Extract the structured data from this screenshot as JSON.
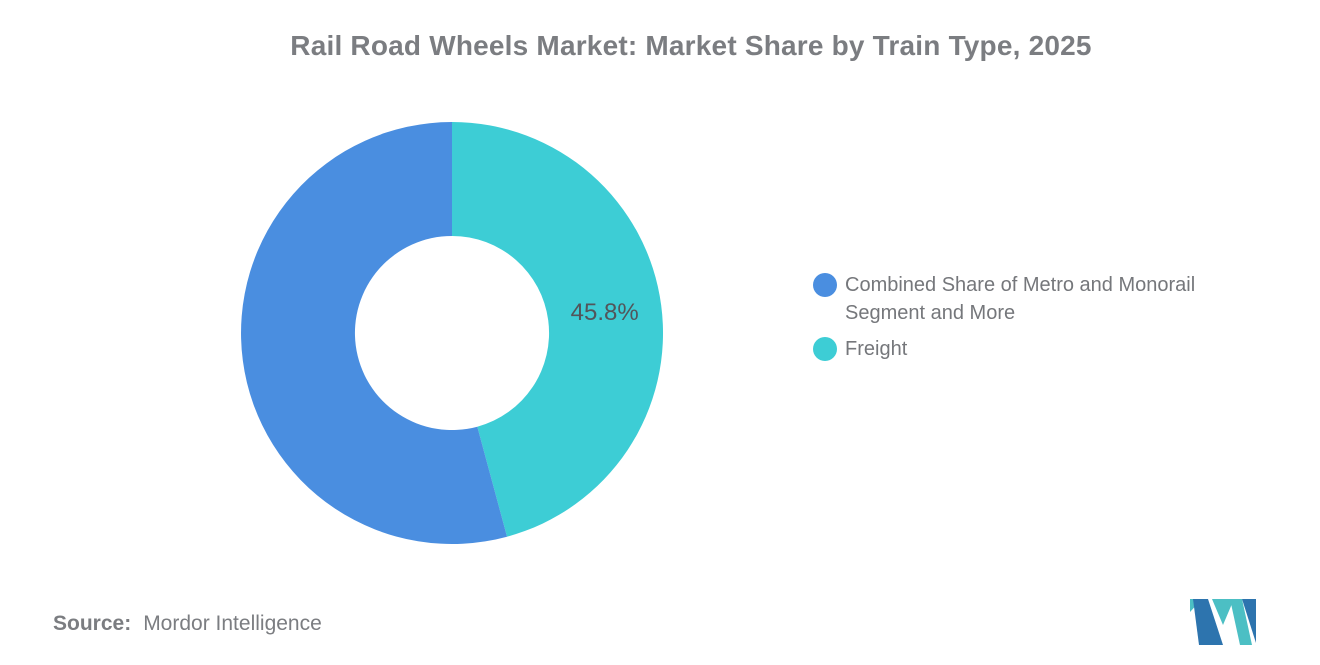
{
  "title": "Rail Road Wheels Market: Market Share by Train Type, 2025",
  "chart_data": {
    "type": "pie",
    "subtype": "donut",
    "title": "Rail Road Wheels Market: Market Share by Train Type, 2025",
    "units": "%",
    "start_angle_deg": 0,
    "direction": "clockwise",
    "inner_radius_ratio": 0.46,
    "legend_position": "right",
    "slices": [
      {
        "name": "Freight",
        "value": 45.8,
        "color": "#3dcdd5",
        "data_label": "45.8%"
      },
      {
        "name": "Combined Share of Metro and Monorail Segment and More",
        "value": 54.2,
        "color": "#4a8ee0",
        "data_label": ""
      }
    ]
  },
  "legend": {
    "items": [
      {
        "label": "Combined Share of Metro and Monorail Segment and More",
        "color": "#4a8ee0"
      },
      {
        "label": "Freight",
        "color": "#3dcdd5"
      }
    ]
  },
  "source": {
    "label": "Source:",
    "text": "Mordor Intelligence"
  },
  "logo": {
    "name": "mordor-intelligence-logo"
  },
  "colors": {
    "title_text": "#7b7d81",
    "legend_text": "#75777b",
    "data_label_text": "#52555a",
    "slice_blue": "#4a8ee0",
    "slice_teal": "#3dcdd5",
    "logo_teal": "#4cbfc4",
    "logo_blue": "#2d74ae"
  }
}
